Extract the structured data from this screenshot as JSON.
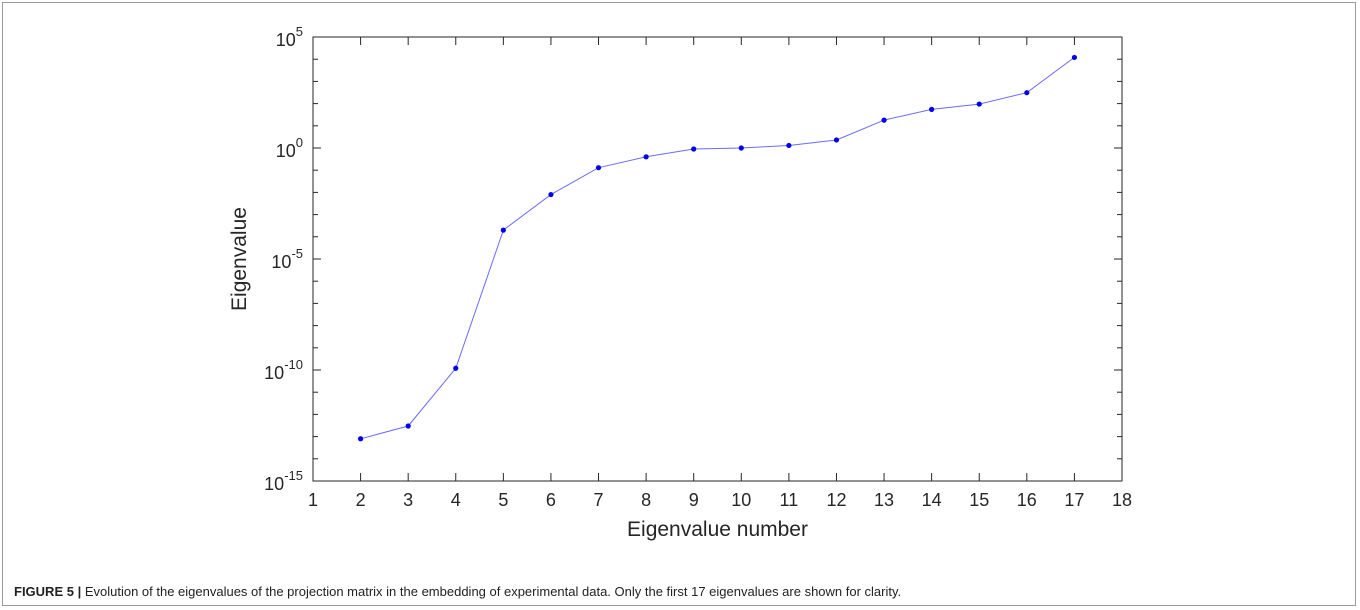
{
  "chart_data": {
    "type": "line",
    "xlabel": "Eigenvalue number",
    "ylabel": "Eigenvalue",
    "xlim": [
      1,
      18
    ],
    "ylim_log10": [
      -15,
      5
    ],
    "yscale": "log",
    "grid": false,
    "x_ticks": [
      "1",
      "2",
      "3",
      "4",
      "5",
      "6",
      "7",
      "8",
      "9",
      "10",
      "11",
      "12",
      "13",
      "14",
      "15",
      "16",
      "17",
      "18"
    ],
    "y_ticks": [
      {
        "base": "10",
        "exp": "-15",
        "log": -15
      },
      {
        "base": "10",
        "exp": "-10",
        "log": -10
      },
      {
        "base": "10",
        "exp": "-5",
        "log": -5
      },
      {
        "base": "10",
        "exp": "0",
        "log": 0
      },
      {
        "base": "10",
        "exp": "5",
        "log": 5
      }
    ],
    "x": [
      2,
      3,
      4,
      5,
      6,
      7,
      8,
      9,
      10,
      11,
      12,
      13,
      14,
      15,
      16,
      17
    ],
    "y": [
      8e-14,
      3e-13,
      1.2e-10,
      0.0002,
      0.008,
      0.13,
      0.4,
      0.9,
      1.0,
      1.3,
      2.3,
      18,
      55,
      95,
      310,
      12000
    ],
    "series": [
      {
        "values": [
          8e-14,
          3e-13,
          1.2e-10,
          0.0002,
          0.008,
          0.13,
          0.4,
          0.9,
          1.0,
          1.3,
          2.3,
          18,
          55,
          95,
          310,
          12000
        ]
      }
    ],
    "colors": {
      "line": "#6b6bff",
      "marker": "#0000ee",
      "axis": "#262626"
    }
  },
  "caption": {
    "label": "FIGURE 5 |",
    "text": " Evolution of the eigenvalues of the projection matrix in the embedding of experimental data. Only the first 17 eigenvalues are shown for clarity."
  }
}
